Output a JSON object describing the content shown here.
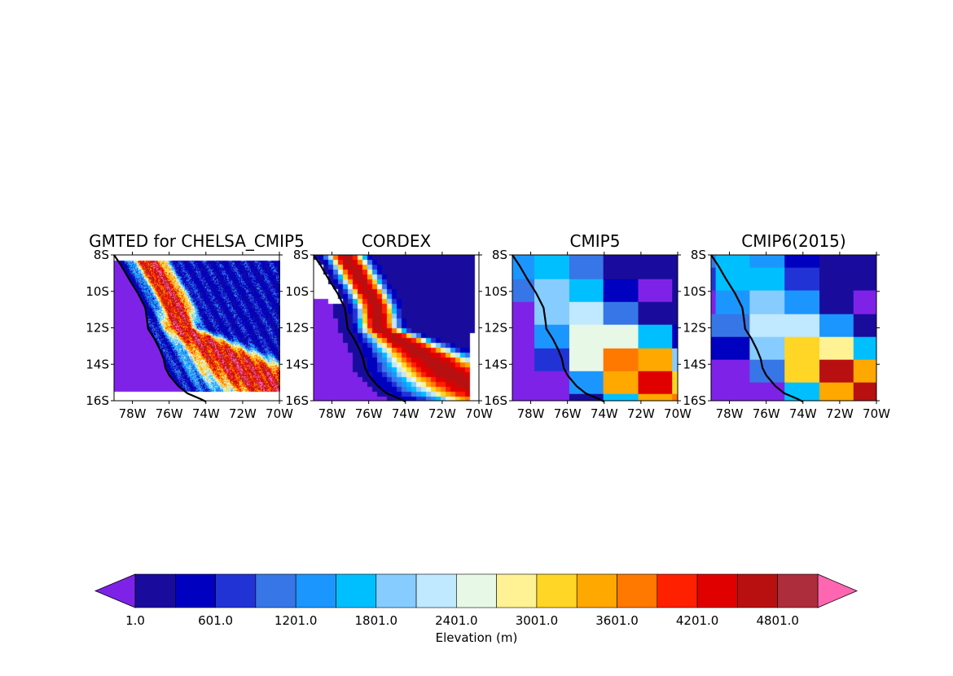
{
  "chart_data": {
    "type": "heatmap",
    "extent": {
      "lon": [
        -79,
        -70
      ],
      "lat": [
        -16,
        -8
      ]
    },
    "x_ticks": [
      "78W",
      "76W",
      "74W",
      "72W",
      "70W"
    ],
    "y_ticks": [
      "8S",
      "10S",
      "12S",
      "14S",
      "16S"
    ],
    "panels": [
      {
        "title": "GMTED for CHELSA_CMIP5",
        "kind": "high-resolution"
      },
      {
        "title": "CORDEX",
        "kind": "regional-model"
      },
      {
        "title": "CMIP5",
        "kind": "grid",
        "lon_edges": [
          -79,
          -77.8,
          -75.9,
          -74.05,
          -72.15,
          -70.3,
          -70
        ],
        "lat_edges": [
          -8,
          -9.33,
          -10.58,
          -11.83,
          -13.13,
          -14.38,
          -15.63,
          -16
        ],
        "levels": [
          [
            4,
            5,
            3,
            0,
            0,
            0
          ],
          [
            3,
            6,
            5,
            1,
            -1,
            0
          ],
          [
            -1,
            6,
            7,
            3,
            0,
            0
          ],
          [
            -1,
            4,
            8,
            8,
            5,
            1
          ],
          [
            -1,
            2,
            8,
            12,
            11,
            6
          ],
          [
            -1,
            -1,
            4,
            11,
            14,
            10
          ],
          [
            -1,
            -1,
            0,
            5,
            11,
            12
          ]
        ]
      },
      {
        "title": "CMIP6(2015)",
        "kind": "grid",
        "lon_edges": [
          -79,
          -78.75,
          -76.9,
          -75,
          -73.1,
          -71.25,
          -70
        ],
        "lat_edges": [
          -8,
          -8.7,
          -9.95,
          -11.25,
          -12.5,
          -13.75,
          -15,
          -16
        ],
        "levels": [
          [
            3,
            5,
            4,
            1,
            0,
            0
          ],
          [
            2,
            5,
            5,
            2,
            0,
            0
          ],
          [
            -1,
            4,
            6,
            4,
            0,
            -1
          ],
          [
            3,
            3,
            7,
            7,
            4,
            0
          ],
          [
            1,
            1,
            6,
            10,
            9,
            5
          ],
          [
            -1,
            -1,
            3,
            10,
            15,
            11
          ],
          [
            -1,
            -1,
            -1,
            5,
            11,
            15
          ]
        ]
      }
    ],
    "colorbar": {
      "label": "Elevation (m)",
      "levels_start": 1,
      "levels_step": 300,
      "n_bins": 17,
      "tick_labels": [
        "1.0",
        "601.0",
        "1201.0",
        "1801.0",
        "2401.0",
        "3001.0",
        "3601.0",
        "4201.0",
        "4801.0"
      ],
      "under_color": "#7f22e8",
      "over_color": "#ff66b2",
      "colors": [
        "#190c9c",
        "#0000c0",
        "#2233d6",
        "#3776e6",
        "#1c96ff",
        "#00bfff",
        "#87ccff",
        "#c0e8ff",
        "#e8f8e6",
        "#fff294",
        "#ffd626",
        "#ffa800",
        "#ff7800",
        "#ff2000",
        "#e00000",
        "#b81010",
        "#ad2d3c"
      ]
    }
  }
}
